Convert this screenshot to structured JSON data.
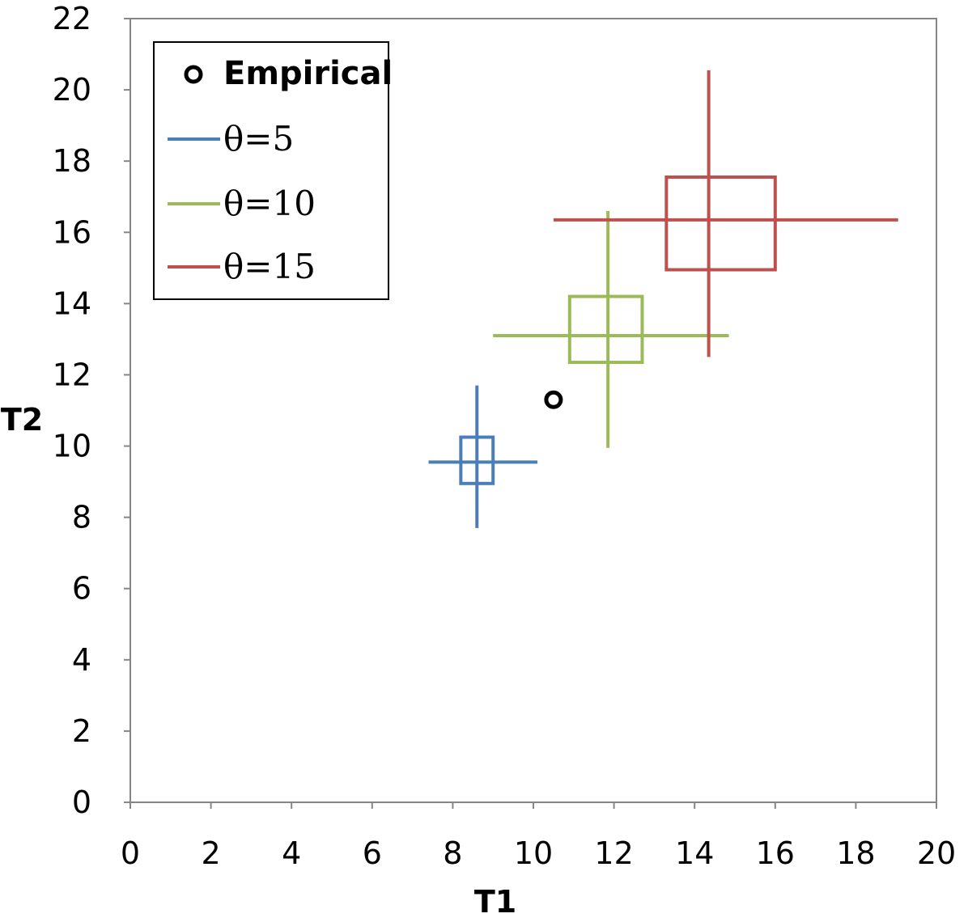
{
  "chart_data": {
    "type": "scatter",
    "title": "",
    "xlabel": "T1",
    "ylabel": "T2",
    "xlim": [
      0,
      20
    ],
    "ylim": [
      0,
      22
    ],
    "xticks": [
      "0",
      "2",
      "4",
      "6",
      "8",
      "10",
      "12",
      "14",
      "16",
      "18",
      "20"
    ],
    "yticks": [
      "0",
      "2",
      "4",
      "6",
      "8",
      "10",
      "12",
      "14",
      "16",
      "18",
      "20",
      "22"
    ],
    "grid": false,
    "legend_position": "top-left",
    "empirical": {
      "name": "Empirical",
      "x": 10.5,
      "y": 11.3,
      "marker": "open-circle",
      "color": "#000000"
    },
    "series": [
      {
        "name": "θ=5",
        "color": "#4A7EBB",
        "center": [
          8.6,
          9.55
        ],
        "box_x": [
          8.2,
          9.0
        ],
        "box_y": [
          8.95,
          10.25
        ],
        "whisker_x": [
          7.4,
          10.1
        ],
        "whisker_y": [
          7.7,
          11.7
        ]
      },
      {
        "name": "θ=10",
        "color": "#9BBB59",
        "center": [
          11.85,
          13.1
        ],
        "box_x": [
          10.9,
          12.7
        ],
        "box_y": [
          12.35,
          14.2
        ],
        "whisker_x": [
          9.0,
          14.85
        ],
        "whisker_y": [
          9.95,
          16.6
        ]
      },
      {
        "name": "θ=15",
        "color": "#C0504D",
        "center": [
          14.35,
          16.35
        ],
        "box_x": [
          13.3,
          16.0
        ],
        "box_y": [
          14.95,
          17.55
        ],
        "whisker_x": [
          10.5,
          19.05
        ],
        "whisker_y": [
          12.5,
          20.55
        ]
      }
    ]
  }
}
